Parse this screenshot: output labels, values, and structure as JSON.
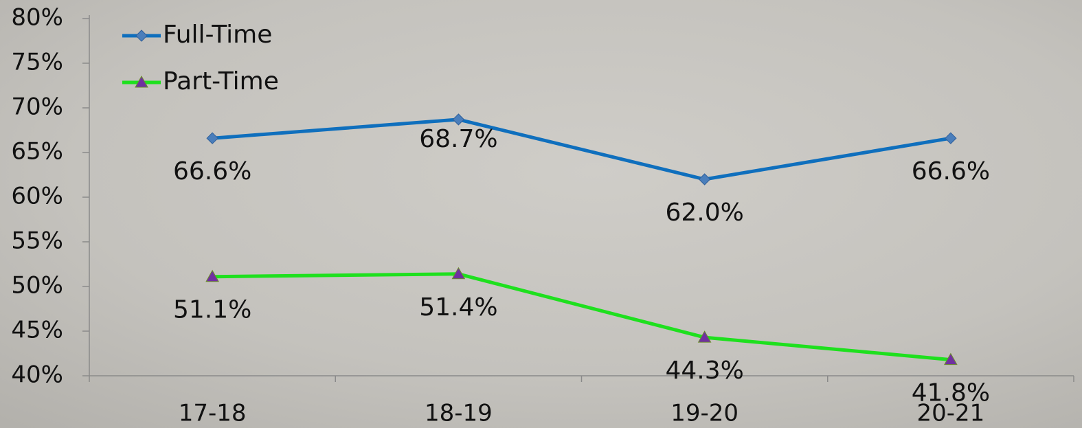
{
  "chart_data": {
    "type": "line",
    "categories": [
      "17-18",
      "18-19",
      "19-20",
      "20-21"
    ],
    "series": [
      {
        "name": "Full-Time",
        "color": "#0f6fbd",
        "marker": "diamond",
        "marker_color": "#4a7ebb",
        "values": [
          66.6,
          68.7,
          62.0,
          66.6
        ],
        "value_labels": [
          "66.6%",
          "68.7%",
          "62.0%",
          "66.6%"
        ]
      },
      {
        "name": "Part-Time",
        "color": "#1ee01e",
        "marker": "triangle",
        "marker_color": "#7030a0",
        "values": [
          51.1,
          51.4,
          44.3,
          41.8
        ],
        "value_labels": [
          "51.1%",
          "51.4%",
          "44.3%",
          "41.8%"
        ]
      }
    ],
    "ylim": [
      40,
      80
    ],
    "yticks": [
      {
        "value": 40,
        "label": "40%"
      },
      {
        "value": 45,
        "label": "45%"
      },
      {
        "value": 50,
        "label": "50%"
      },
      {
        "value": 55,
        "label": "55%"
      },
      {
        "value": 60,
        "label": "60%"
      },
      {
        "value": 65,
        "label": "65%"
      },
      {
        "value": 70,
        "label": "70%"
      },
      {
        "value": 75,
        "label": "75%"
      },
      {
        "value": 80,
        "label": "80%"
      }
    ],
    "legend": "top-left"
  }
}
